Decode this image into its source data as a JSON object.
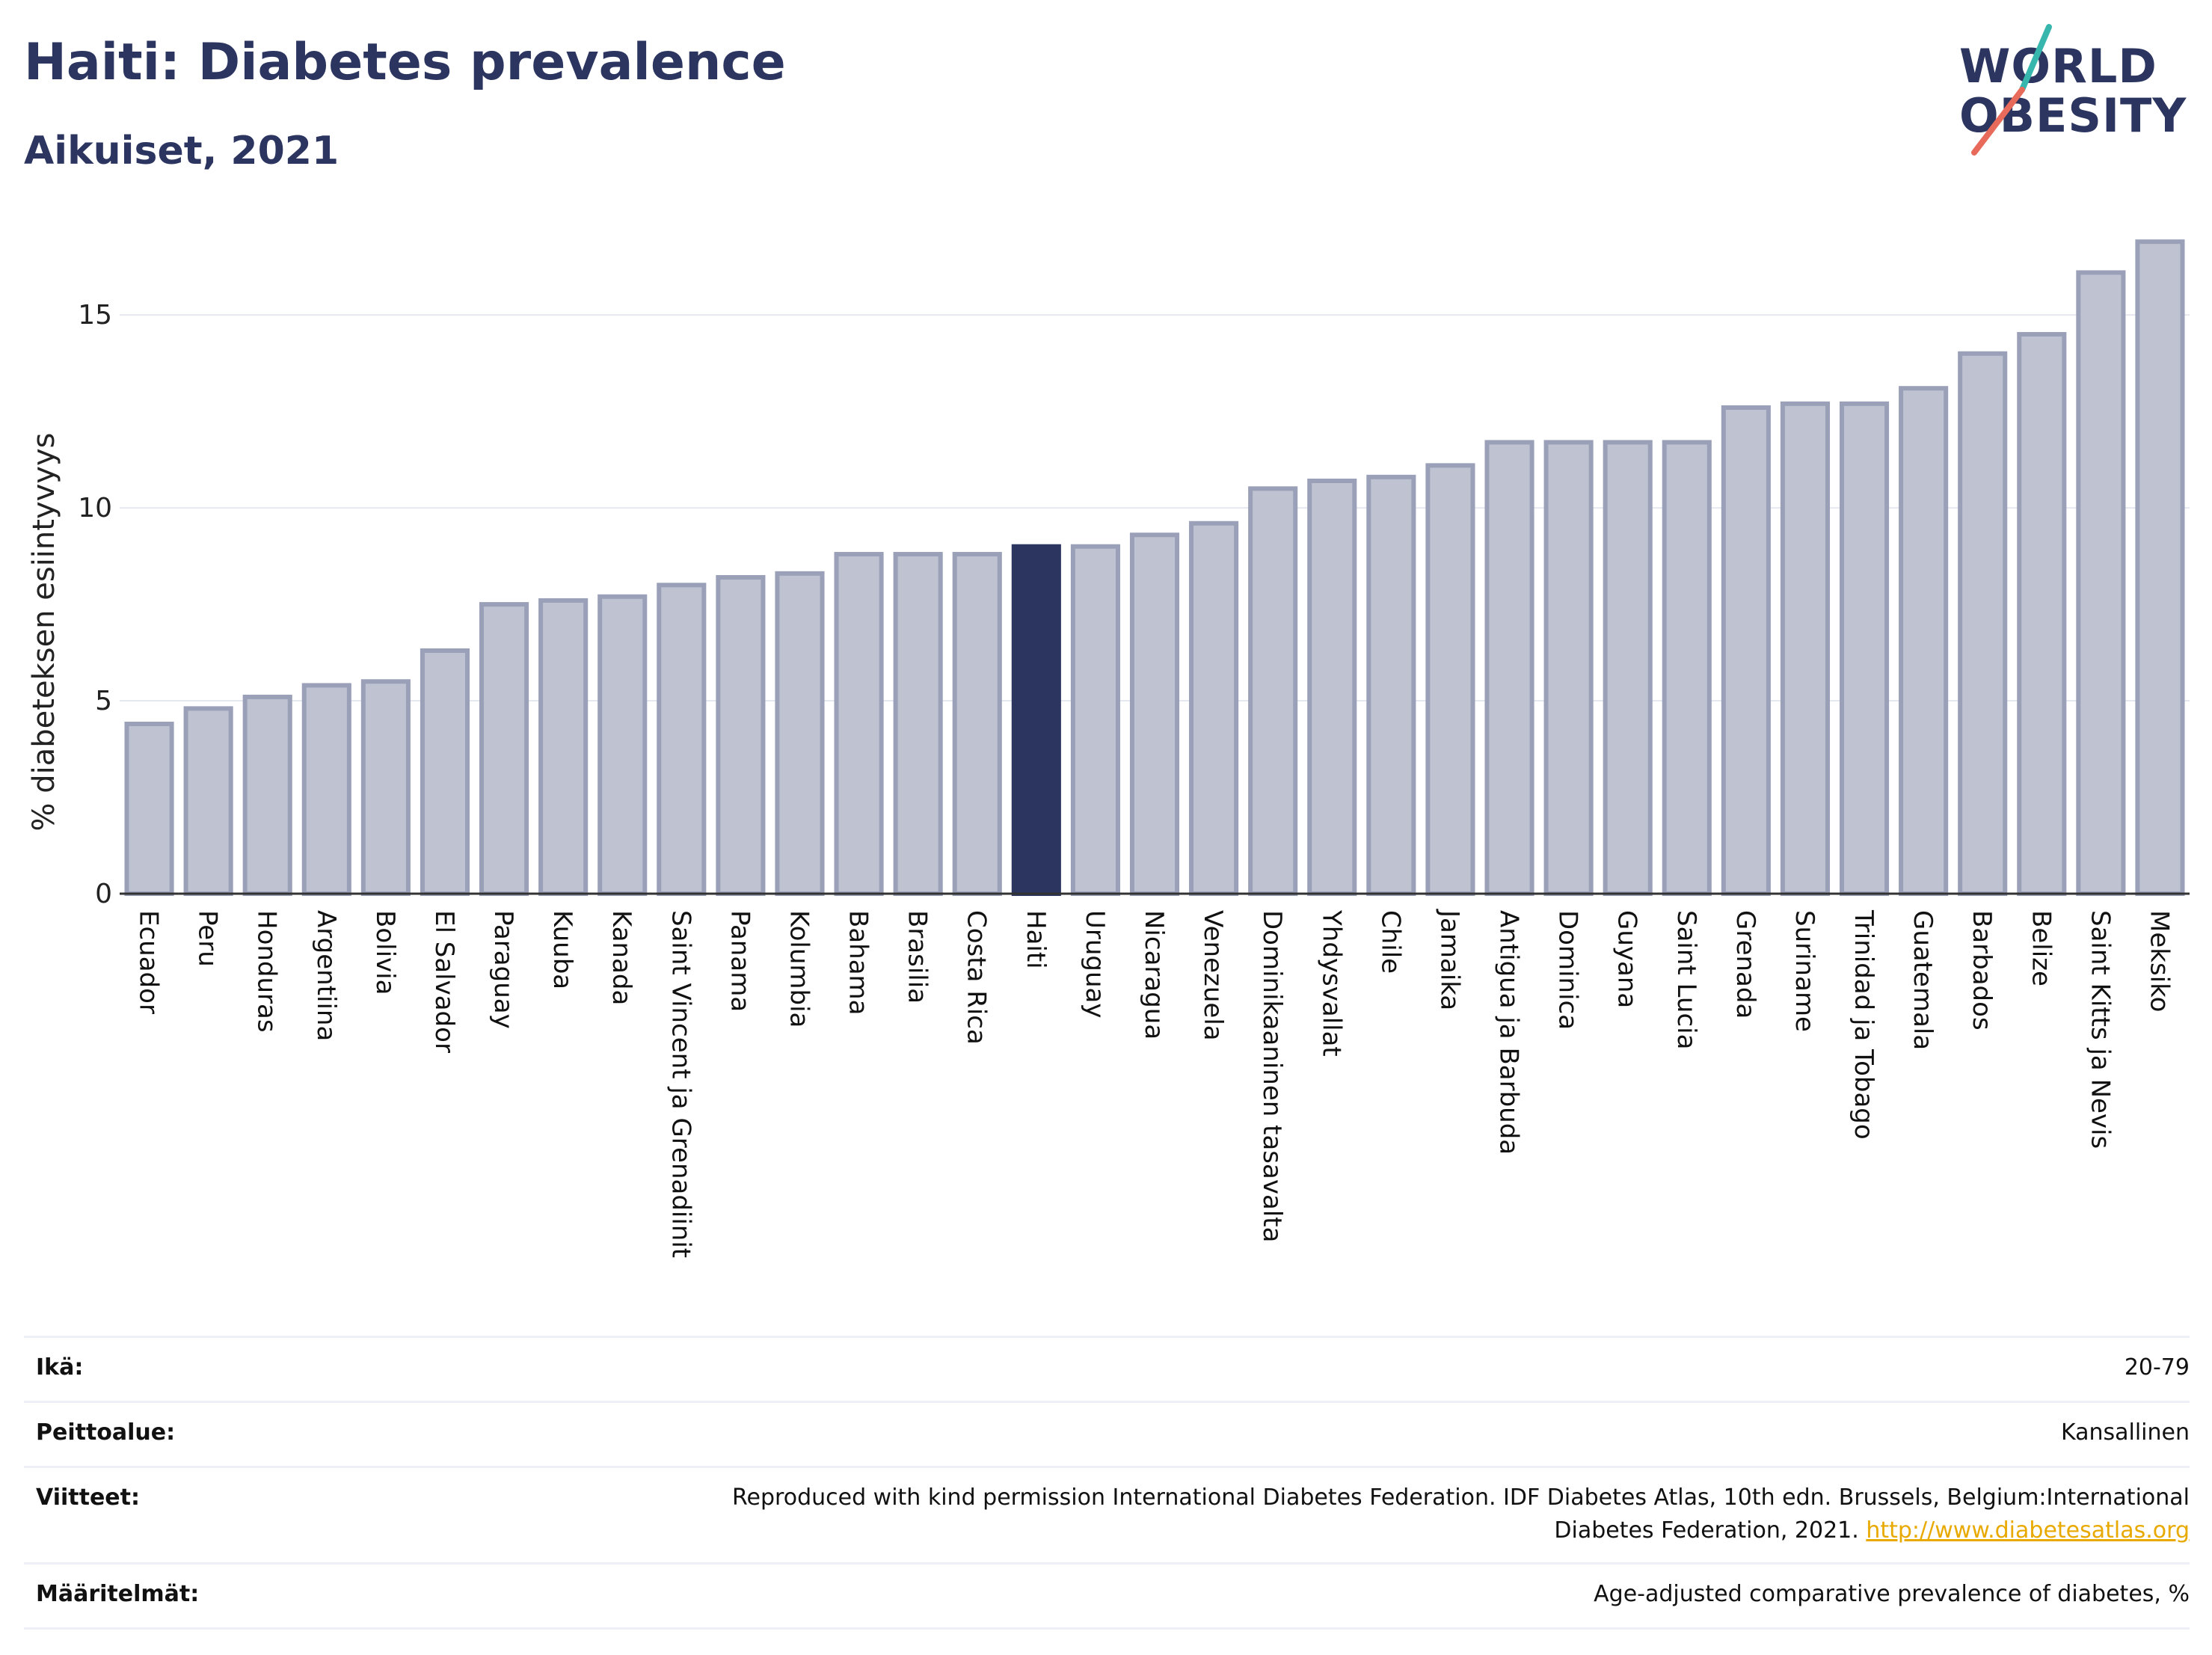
{
  "header": {
    "title": "Haiti: Diabetes prevalence",
    "subtitle": "Aikuiset, 2021"
  },
  "logo": {
    "line1": "WORLD",
    "line2": "OBESITY",
    "slash_colors": [
      "#37b6ae",
      "#e86a5a"
    ]
  },
  "colors": {
    "highlight": "#2b355f",
    "bar_fill": "#bfc3d1",
    "bar_stroke": "#9aa0b8",
    "link": "#e8a900"
  },
  "chart_data": {
    "type": "bar",
    "title": "Haiti: Diabetes prevalence",
    "subtitle": "Aikuiset, 2021",
    "ylabel": "% diabeteksen esiintyvyys",
    "xlabel": "",
    "ylim": [
      0,
      17
    ],
    "yticks": [
      0,
      5,
      10,
      15
    ],
    "grid": true,
    "highlight": "Haiti",
    "categories": [
      "Ecuador",
      "Peru",
      "Honduras",
      "Argentiina",
      "Bolivia",
      "El Salvador",
      "Paraguay",
      "Kuuba",
      "Kanada",
      "Saint Vincent ja Grenadiinit",
      "Panama",
      "Kolumbia",
      "Bahama",
      "Brasilia",
      "Costa Rica",
      "Haiti",
      "Uruguay",
      "Nicaragua",
      "Venezuela",
      "Dominikaaninen tasavalta",
      "Yhdysvallat",
      "Chile",
      "Jamaika",
      "Antigua ja Barbuda",
      "Dominica",
      "Guyana",
      "Saint Lucia",
      "Grenada",
      "Suriname",
      "Trinidad ja Tobago",
      "Guatemala",
      "Barbados",
      "Belize",
      "Saint Kitts ja Nevis",
      "Meksiko"
    ],
    "values": [
      4.4,
      4.8,
      5.1,
      5.4,
      5.5,
      6.3,
      7.5,
      7.6,
      7.7,
      8.0,
      8.2,
      8.3,
      8.8,
      8.8,
      8.8,
      9.0,
      9.0,
      9.3,
      9.6,
      10.5,
      10.7,
      10.8,
      11.1,
      11.7,
      11.7,
      11.7,
      11.7,
      12.6,
      12.7,
      12.7,
      13.1,
      14.0,
      14.5,
      16.1,
      16.9
    ]
  },
  "metadata": [
    {
      "label": "Ikä:",
      "value": "20-79"
    },
    {
      "label": "Peittoalue:",
      "value": "Kansallinen"
    },
    {
      "label": "Viitteet:",
      "value": "Reproduced with kind permission International Diabetes Federation.  IDF Diabetes Atlas, 10th edn. Brussels, Belgium:International Diabetes Federation, 2021.",
      "link": "http://www.diabetesatlas.org"
    },
    {
      "label": "Määritelmät:",
      "value": "Age-adjusted comparative prevalence of diabetes, %"
    }
  ]
}
